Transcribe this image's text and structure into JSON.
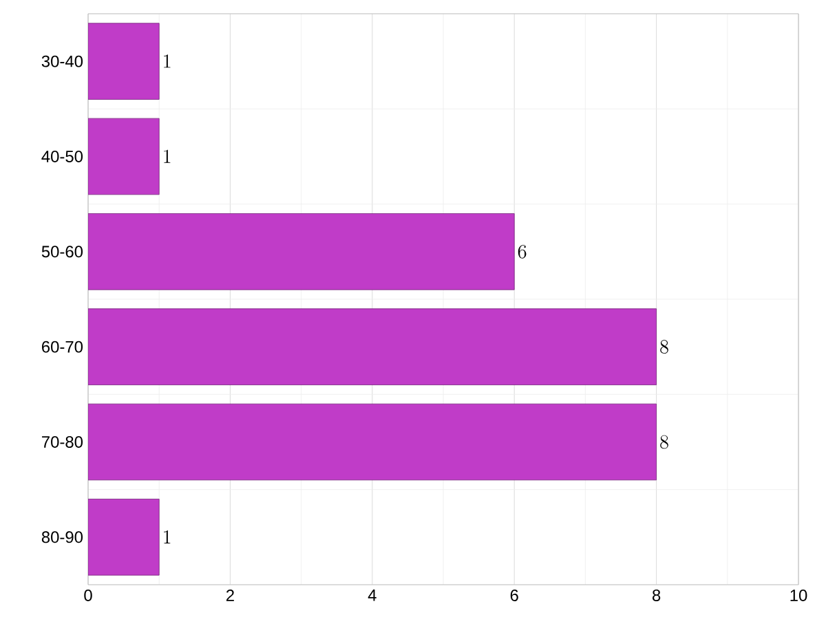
{
  "chart_data": {
    "type": "bar",
    "orientation": "horizontal",
    "categories": [
      "30-40",
      "40-50",
      "50-60",
      "60-70",
      "70-80",
      "80-90"
    ],
    "values": [
      1,
      1,
      6,
      8,
      8,
      1
    ],
    "color": "#c03cc8",
    "xlim": [
      0,
      10
    ],
    "xticks": [
      0,
      2,
      4,
      6,
      8,
      10
    ],
    "grid": true,
    "data_labels": true
  }
}
